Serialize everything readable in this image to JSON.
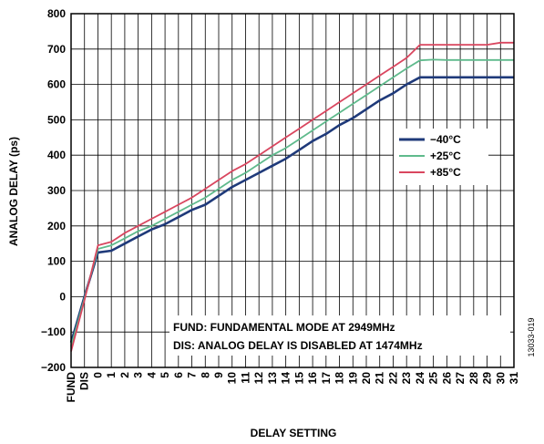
{
  "chart_data": {
    "type": "line",
    "xlabel": "DELAY SETTING",
    "ylabel": "ANALOG DELAY (ps)",
    "ylim": [
      -200,
      800
    ],
    "yticks": [
      -200,
      -100,
      0,
      100,
      200,
      300,
      400,
      500,
      600,
      700,
      800
    ],
    "categories": [
      "FUND",
      "DIS",
      "0",
      "1",
      "2",
      "3",
      "4",
      "5",
      "6",
      "7",
      "8",
      "9",
      "10",
      "11",
      "12",
      "13",
      "14",
      "15",
      "16",
      "17",
      "18",
      "19",
      "20",
      "21",
      "22",
      "23",
      "24",
      "25",
      "26",
      "27",
      "28",
      "29",
      "30",
      "31"
    ],
    "grid": true,
    "legend_position": "right",
    "series": [
      {
        "name": "−40°C",
        "color": "#1f3a7a",
        "values": [
          -130,
          0,
          125,
          130,
          150,
          170,
          190,
          205,
          225,
          245,
          260,
          285,
          310,
          330,
          350,
          370,
          390,
          415,
          440,
          460,
          485,
          505,
          530,
          555,
          575,
          600,
          620,
          620,
          620,
          620,
          620,
          620,
          620,
          620
        ]
      },
      {
        "name": "+25°C",
        "color": "#5fba8c",
        "values": [
          -140,
          -5,
          135,
          145,
          165,
          185,
          200,
          220,
          240,
          260,
          280,
          305,
          330,
          350,
          375,
          400,
          420,
          445,
          470,
          495,
          520,
          545,
          570,
          595,
          620,
          645,
          668,
          670,
          669,
          669,
          669,
          669,
          669,
          669
        ]
      },
      {
        "name": "+85°C",
        "color": "#d9465f",
        "values": [
          -155,
          -10,
          145,
          155,
          180,
          200,
          220,
          240,
          260,
          280,
          305,
          330,
          355,
          375,
          400,
          425,
          450,
          475,
          500,
          525,
          550,
          575,
          600,
          625,
          650,
          675,
          712,
          712,
          712,
          712,
          712,
          712,
          718,
          718
        ]
      }
    ],
    "annotations": [
      "FUND: FUNDAMENTAL MODE AT 2949MHz",
      "DIS: ANALOG DELAY IS DISABLED AT 1474MHz"
    ],
    "figure_id": "13033-019"
  }
}
